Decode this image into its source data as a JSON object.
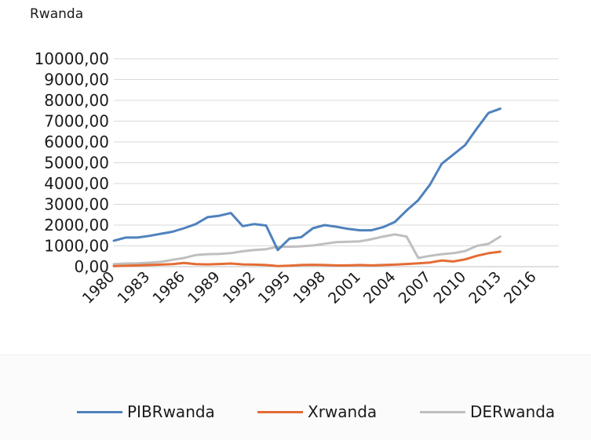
{
  "chart_data": {
    "type": "line",
    "title": "Rwanda",
    "xlabel": "",
    "ylabel": "",
    "ylim": [
      0,
      10000
    ],
    "yticks": [
      "0,00",
      "1000,00",
      "2000,00",
      "3000,00",
      "4000,00",
      "5000,00",
      "6000,00",
      "7000,00",
      "8000,00",
      "9000,00",
      "10000,00"
    ],
    "xlim": [
      1980,
      2018
    ],
    "xticks": [
      "1980",
      "1983",
      "1986",
      "1989",
      "1992",
      "1995",
      "1998",
      "2001",
      "2004",
      "2007",
      "2010",
      "2013",
      "2016"
    ],
    "grid": true,
    "legend_position": "bottom",
    "x": [
      1980,
      1981,
      1982,
      1983,
      1984,
      1985,
      1986,
      1987,
      1988,
      1989,
      1990,
      1991,
      1992,
      1993,
      1994,
      1995,
      1996,
      1997,
      1998,
      1999,
      2000,
      2001,
      2002,
      2003,
      2004,
      2005,
      2006,
      2007,
      2008,
      2009,
      2010,
      2011,
      2012,
      2013
    ],
    "series": [
      {
        "name": "PIBRwanda",
        "color": "#4f81bd",
        "values": [
          1250,
          1400,
          1400,
          1480,
          1580,
          1680,
          1850,
          2050,
          2380,
          2450,
          2580,
          1950,
          2050,
          1980,
          800,
          1350,
          1420,
          1850,
          2000,
          1920,
          1820,
          1750,
          1750,
          1900,
          2150,
          2700,
          3200,
          3950,
          4950,
          5400,
          5850,
          6650,
          7400,
          7600
        ]
      },
      {
        "name": "Xrwanda",
        "color": "#e46c34",
        "values": [
          30,
          40,
          60,
          80,
          100,
          120,
          180,
          120,
          110,
          130,
          150,
          110,
          100,
          80,
          30,
          50,
          80,
          90,
          80,
          60,
          60,
          80,
          60,
          80,
          100,
          130,
          160,
          200,
          300,
          250,
          350,
          520,
          650,
          720
        ]
      },
      {
        "name": "DERwanda",
        "color": "#bfbfbf",
        "values": [
          120,
          150,
          160,
          190,
          230,
          330,
          420,
          560,
          600,
          610,
          650,
          740,
          800,
          840,
          960,
          960,
          980,
          1020,
          1100,
          1180,
          1200,
          1220,
          1320,
          1450,
          1550,
          1450,
          420,
          520,
          600,
          650,
          750,
          1000,
          1100,
          1450
        ]
      }
    ]
  }
}
